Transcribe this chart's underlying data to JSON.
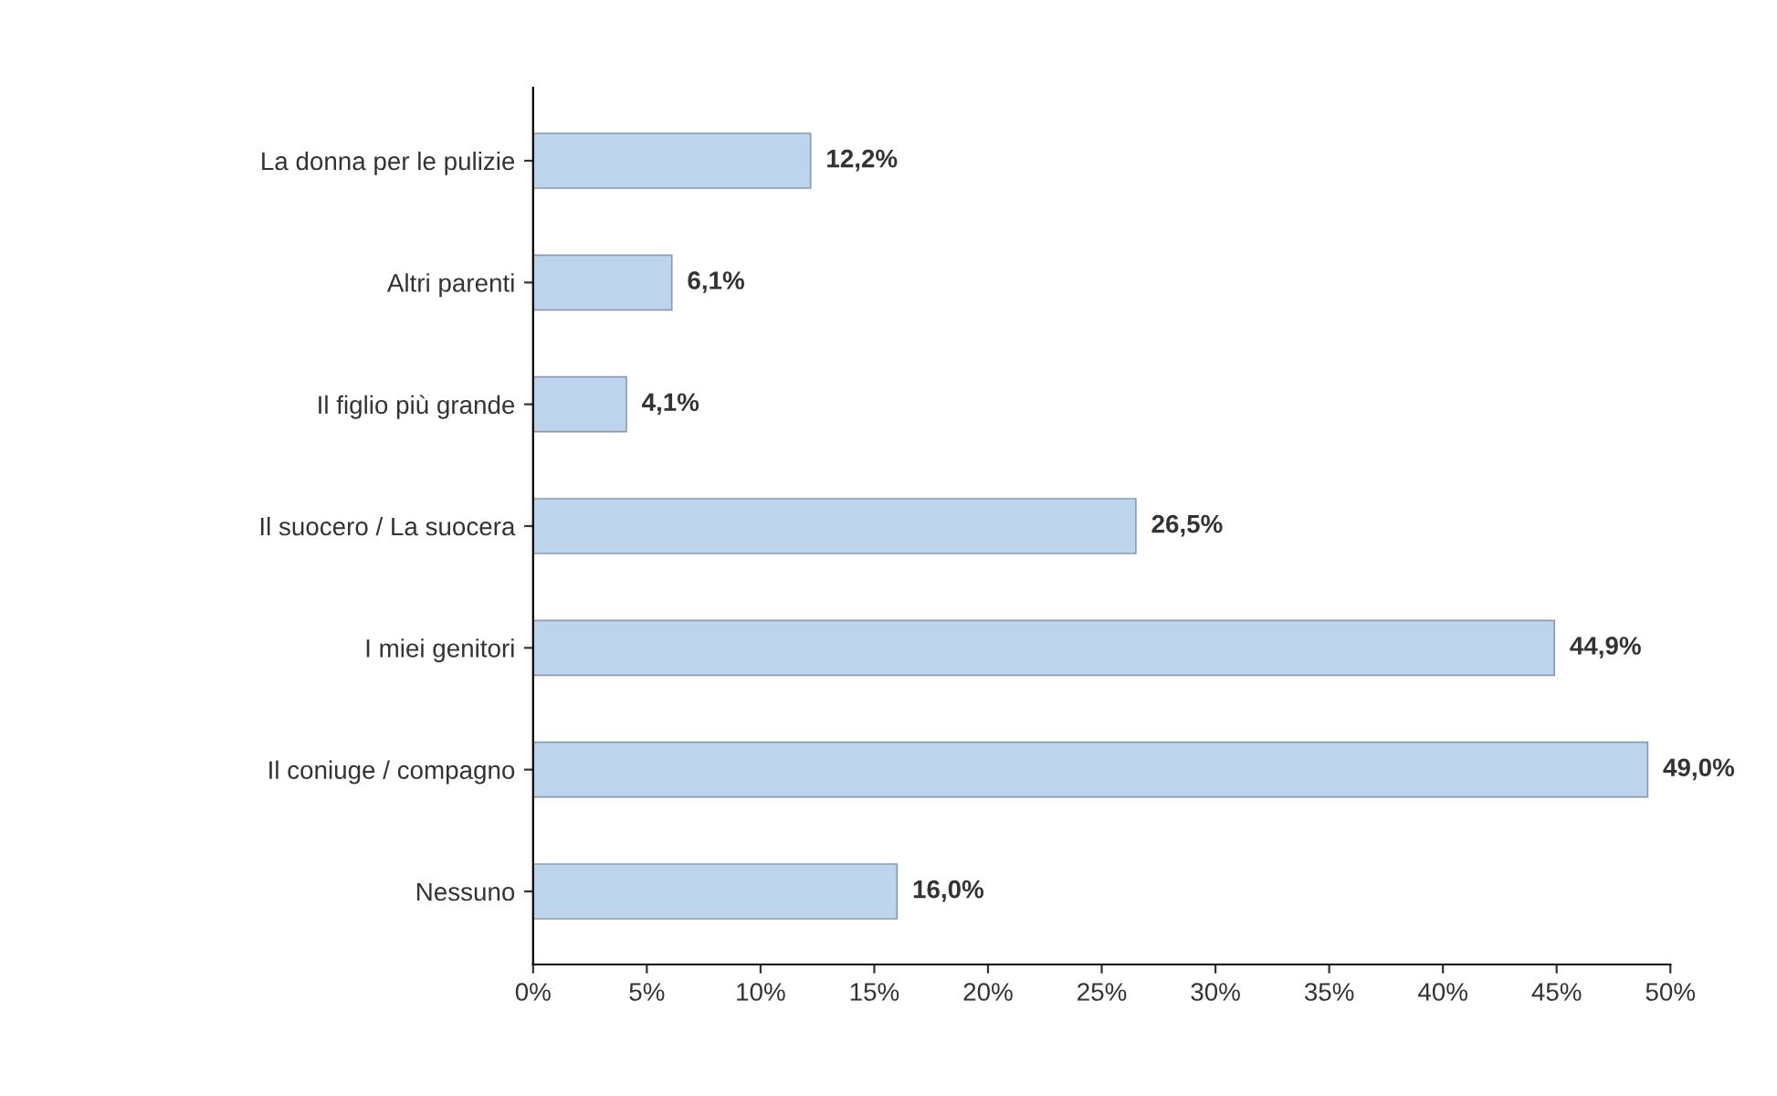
{
  "chart_data": {
    "type": "bar",
    "orientation": "horizontal",
    "categories": [
      "La donna per le pulizie",
      "Altri parenti",
      "Il figlio più grande",
      "Il suocero / La suocera",
      "I miei genitori",
      "Il coniuge / compagno",
      "Nessuno"
    ],
    "values": [
      12.2,
      6.1,
      4.1,
      26.5,
      44.9,
      49.0,
      16.0
    ],
    "value_labels": [
      "12,2%",
      "6,1%",
      "4,1%",
      "26,5%",
      "44,9%",
      "49,0%",
      "16,0%"
    ],
    "color": "#bcd5ec",
    "xlim": [
      0,
      50
    ],
    "xticks": [
      {
        "value": 0,
        "label": "0%"
      },
      {
        "value": 5,
        "label": "5%"
      },
      {
        "value": 10,
        "label": "10%"
      },
      {
        "value": 15,
        "label": "15%"
      },
      {
        "value": 20,
        "label": "20%"
      },
      {
        "value": 25,
        "label": "25%"
      },
      {
        "value": 30,
        "label": "30%"
      },
      {
        "value": 35,
        "label": "35%"
      },
      {
        "value": 40,
        "label": "40%"
      },
      {
        "value": 45,
        "label": "45%"
      },
      {
        "value": 50,
        "label": "50%"
      }
    ],
    "grid": false,
    "legend": false
  }
}
